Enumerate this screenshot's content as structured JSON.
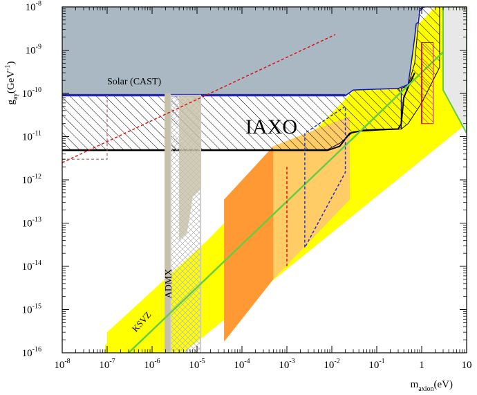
{
  "chart_data": {
    "type": "area",
    "title": "",
    "xlabel": {
      "main": "m",
      "sub": "axion",
      "unit": "(eV)"
    },
    "ylabel": {
      "main": "g",
      "sub": "aγ",
      "unit": "(GeV",
      "unit_sup": "-1",
      "unit_end": ")"
    },
    "x_scale": "log",
    "y_scale": "log",
    "xlim": [
      1e-08,
      10
    ],
    "ylim": [
      1e-16,
      1e-08
    ],
    "x_ticks": [
      {
        "base": "10",
        "exp": "-8"
      },
      {
        "base": "10",
        "exp": "-7"
      },
      {
        "base": "10",
        "exp": "-6"
      },
      {
        "base": "10",
        "exp": "-5"
      },
      {
        "base": "10",
        "exp": "-4"
      },
      {
        "base": "10",
        "exp": "-3"
      },
      {
        "base": "10",
        "exp": "-2"
      },
      {
        "base": "10",
        "exp": "-1"
      },
      {
        "base": "1",
        "exp": ""
      },
      {
        "base": "10",
        "exp": ""
      }
    ],
    "y_ticks": [
      {
        "base": "10",
        "exp": "-16"
      },
      {
        "base": "10",
        "exp": "-15"
      },
      {
        "base": "10",
        "exp": "-14"
      },
      {
        "base": "10",
        "exp": "-13"
      },
      {
        "base": "10",
        "exp": "-12"
      },
      {
        "base": "10",
        "exp": "-11"
      },
      {
        "base": "10",
        "exp": "-10"
      },
      {
        "base": "10",
        "exp": "-9"
      },
      {
        "base": "10",
        "exp": "-8"
      }
    ],
    "annotations": {
      "solar": "Solar (CAST)",
      "iaxo": "IAXO",
      "admx": "ADMX",
      "ksvz": "KSVZ"
    },
    "regions": [
      {
        "name": "Solar (CAST)",
        "color": "#a9b8c2",
        "excluded_above_g": 8.8e-11,
        "x_range": [
          1e-08,
          0.02
        ]
      },
      {
        "name": "IAXO",
        "style": "hatched",
        "g_range": [
          5e-12,
          8.8e-11
        ],
        "x_range": [
          1e-08,
          0.01
        ]
      },
      {
        "name": "ADMX",
        "color": "#c7c0a8",
        "x_range": [
          1.9e-06,
          3.5e-06
        ]
      },
      {
        "name": "QCD axion band",
        "color": "#ffff00"
      },
      {
        "name": "orange band",
        "color": "#ff9933",
        "x_range": [
          4e-05,
          0.0005
        ]
      },
      {
        "name": "light orange band",
        "color": "#ffcc66",
        "x_range": [
          0.0005,
          0.025
        ]
      }
    ],
    "series": [
      {
        "name": "KSVZ",
        "color": "#66cc44",
        "x": [
          3e-07,
          10
        ],
        "y": [
          1e-16,
          3e-09
        ]
      },
      {
        "x": [
          1e-08,
          0.012
        ],
        "y": [
          2.5e-12,
          2.3e-09
        ],
        "color": "#dd1111",
        "dash": true
      }
    ],
    "colors": {
      "cast_fill": "#a9b8c2",
      "cast_line": "#1111cc",
      "yellow_band": "#ffff00",
      "orange": "#ff9933",
      "light_orange": "#ffcc66",
      "admx": "#c7c0a8",
      "ksvz_line": "#66cc44",
      "red_dash": "#dd1111",
      "blue_dash": "#2233cc",
      "gray_dash": "#996666",
      "green_region": "#e8e8e8"
    }
  }
}
